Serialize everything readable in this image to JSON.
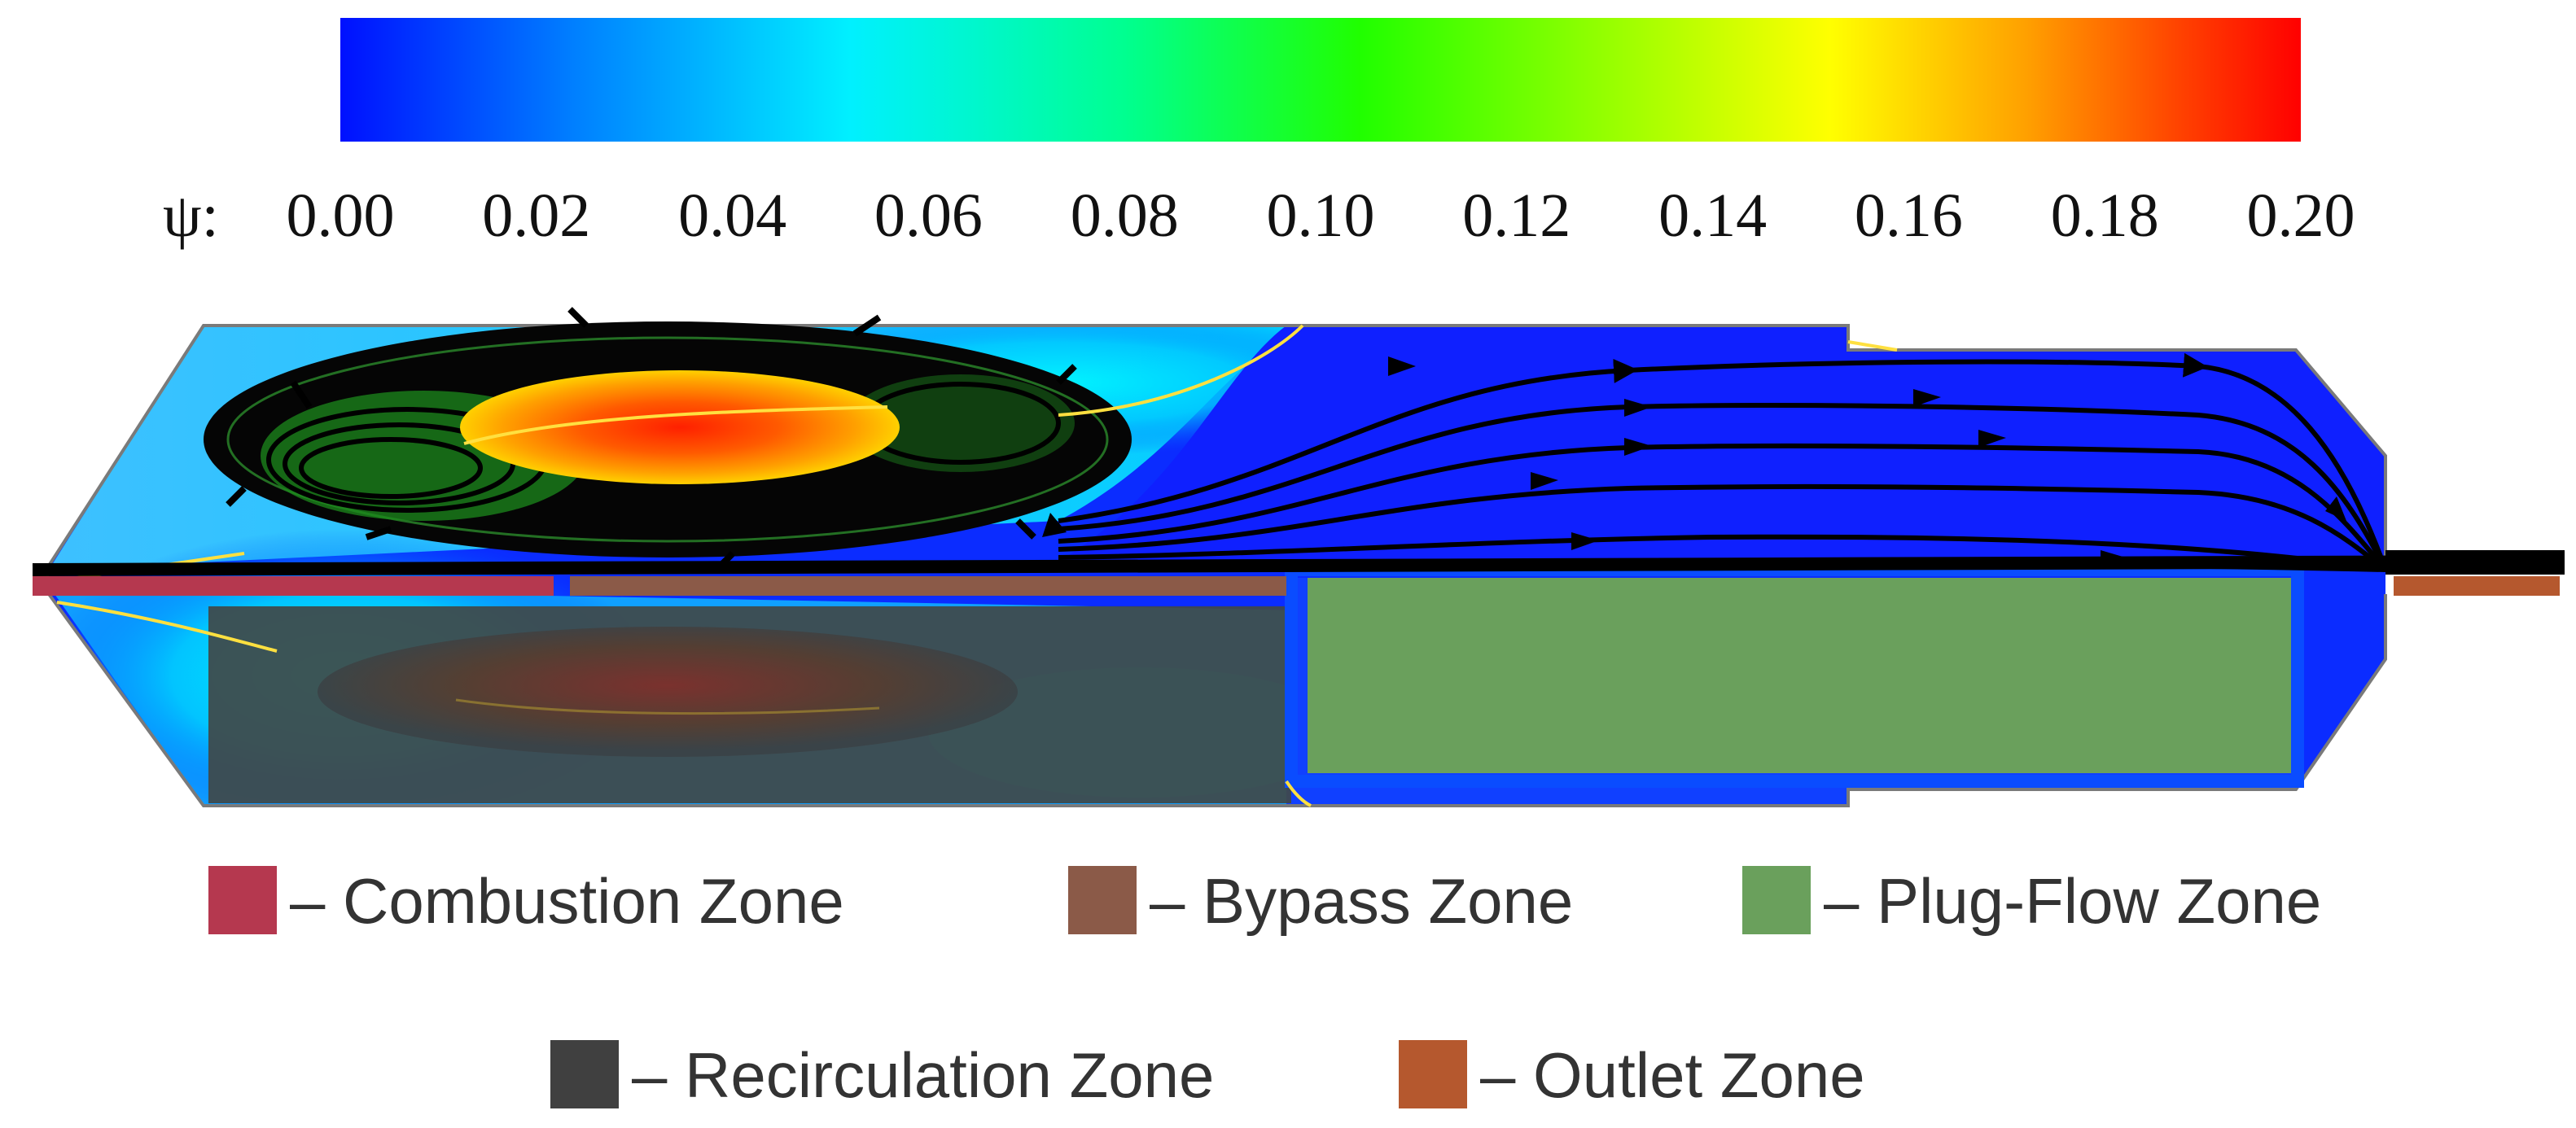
{
  "colorbar": {
    "variable_label": "ψ:",
    "tick_labels": [
      "0.00",
      "0.02",
      "0.04",
      "0.06",
      "0.08",
      "0.10",
      "0.12",
      "0.14",
      "0.16",
      "0.18",
      "0.20"
    ],
    "min": 0.0,
    "max": 0.2,
    "gradient_colors": [
      "#0010ff",
      "#0090ff",
      "#00f0ff",
      "#00ff90",
      "#20ff00",
      "#90ff00",
      "#ffff00",
      "#ffa000",
      "#ff4000",
      "#ff0000"
    ]
  },
  "legend": {
    "items": [
      {
        "key": "combustion",
        "label": "– Combustion Zone",
        "color": "#b5384f"
      },
      {
        "key": "bypass",
        "label": "– Bypass Zone",
        "color": "#8b5a48"
      },
      {
        "key": "plugflow",
        "label": "– Plug-Flow Zone",
        "color": "#6aa05c"
      },
      {
        "key": "recirculation",
        "label": "– Recirculation Zone",
        "color": "#404040"
      },
      {
        "key": "outlet",
        "label": "– Outlet Zone",
        "color": "#b5582e"
      }
    ]
  }
}
